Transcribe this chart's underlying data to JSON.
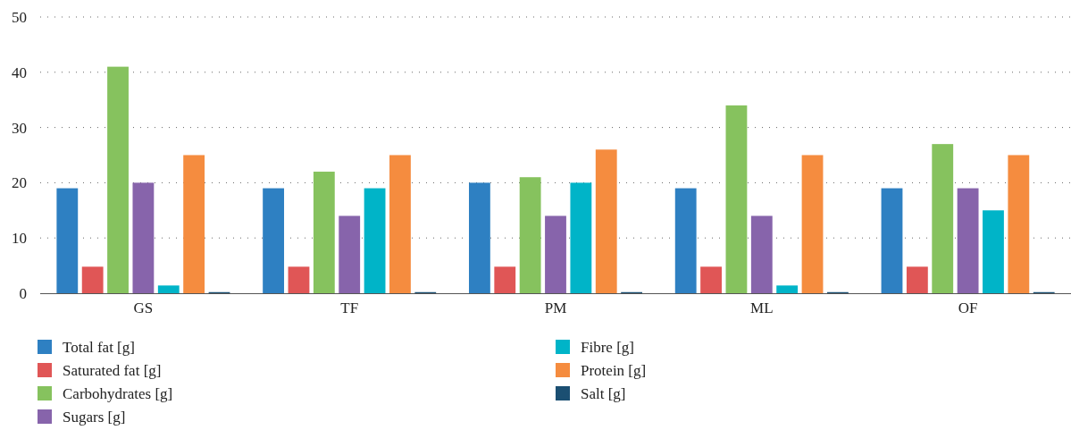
{
  "chart_data": {
    "type": "bar",
    "categories": [
      "GS",
      "TF",
      "PM",
      "ML",
      "OF"
    ],
    "series": [
      {
        "name": "Total fat [g]",
        "color": "#2e80c2",
        "values": [
          19,
          19,
          20,
          19,
          19
        ]
      },
      {
        "name": "Saturated fat [g]",
        "color": "#e05656",
        "values": [
          4.8,
          4.8,
          4.8,
          4.8,
          4.8
        ]
      },
      {
        "name": "Carbohydrates [g]",
        "color": "#86c25e",
        "values": [
          41,
          22,
          21,
          34,
          27
        ]
      },
      {
        "name": "Sugars [g]",
        "color": "#8764ab",
        "values": [
          20,
          14,
          14,
          14,
          19
        ]
      },
      {
        "name": "Fibre [g]",
        "color": "#00b4c8",
        "values": [
          1.4,
          19,
          20,
          1.4,
          15
        ]
      },
      {
        "name": "Protein [g]",
        "color": "#f58c3f",
        "values": [
          25,
          25,
          26,
          25,
          25
        ]
      },
      {
        "name": "Salt [g]",
        "color": "#1b4f72",
        "values": [
          0.2,
          0.2,
          0.2,
          0.2,
          0.2
        ]
      }
    ],
    "ylim": [
      0,
      50
    ],
    "yticks": [
      0,
      10,
      20,
      30,
      40,
      50
    ],
    "grid": "y",
    "legend": "bottom"
  }
}
